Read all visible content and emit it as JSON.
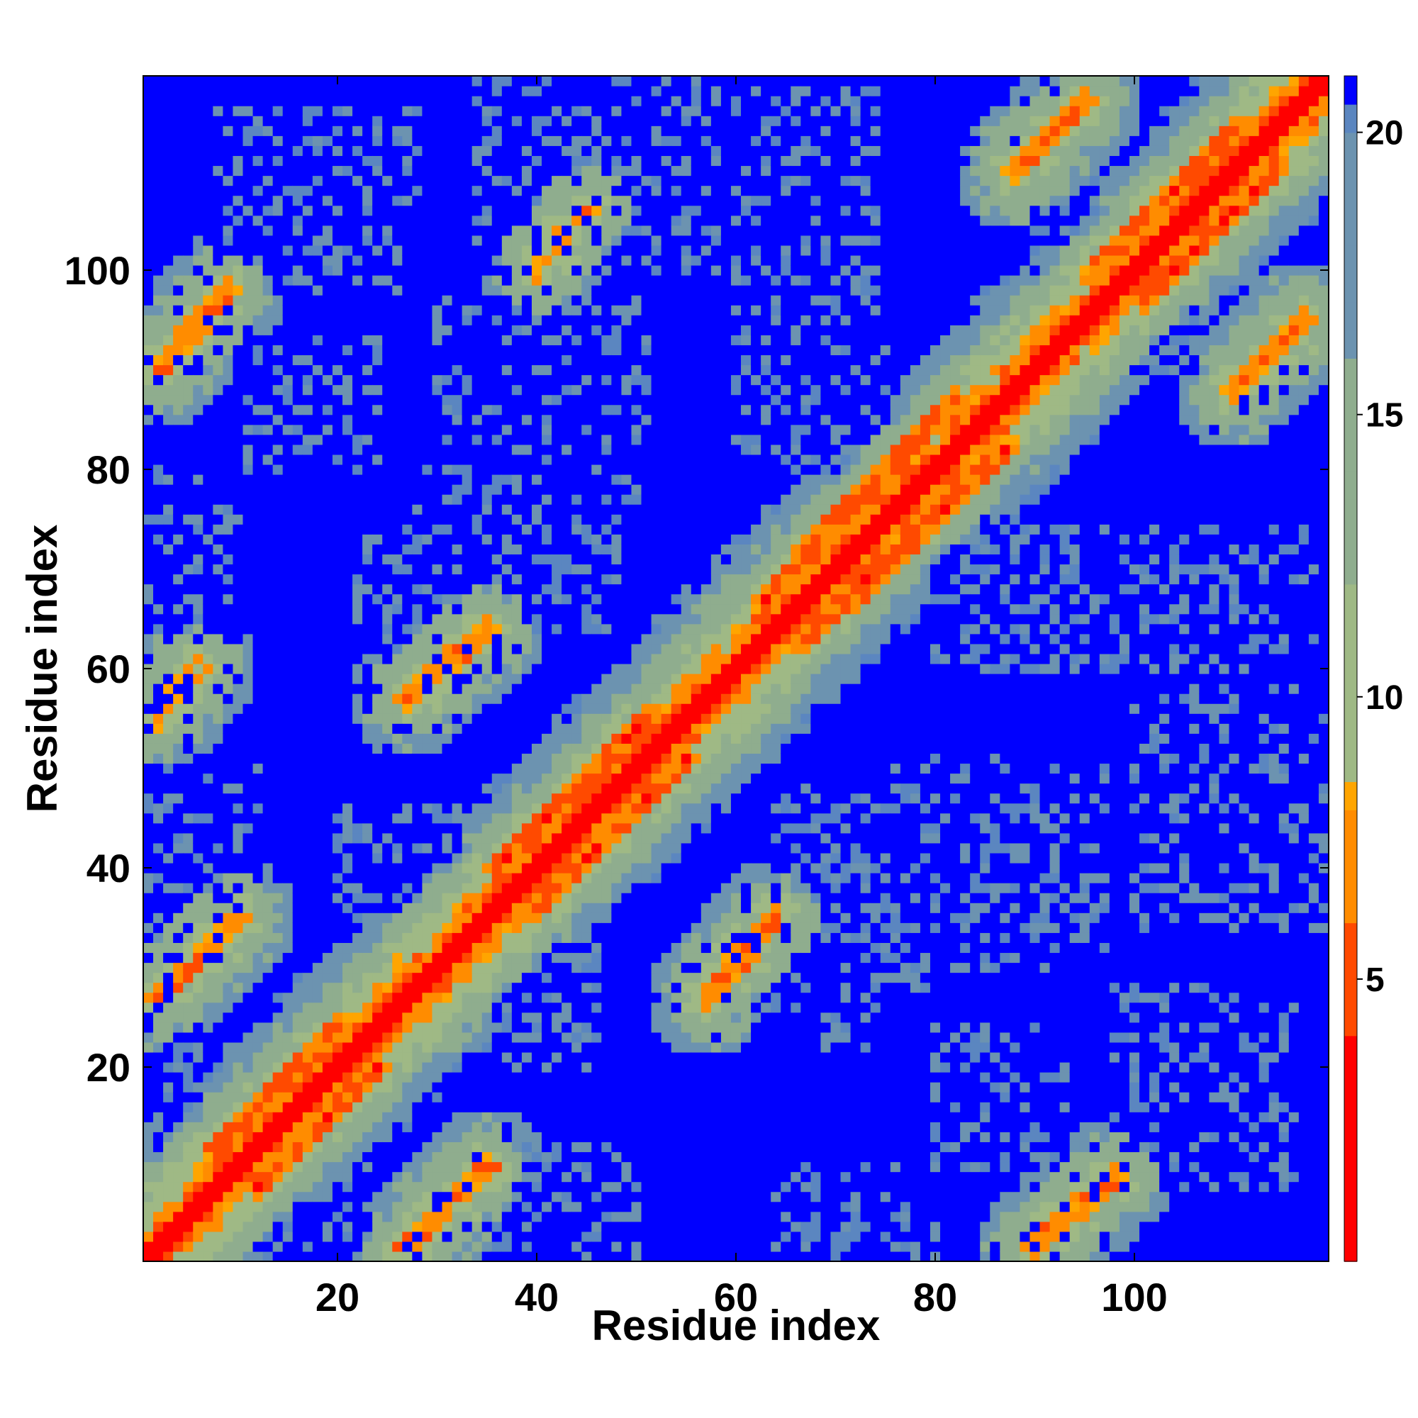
{
  "chart_data": {
    "type": "heatmap",
    "title": "",
    "xlabel": "Residue index",
    "ylabel": "Residue index",
    "xlim": [
      1,
      119
    ],
    "ylim": [
      1,
      119
    ],
    "x_ticks": [
      20,
      40,
      60,
      80,
      100
    ],
    "y_ticks": [
      20,
      40,
      60,
      80,
      100
    ],
    "colorbar": {
      "range": [
        0,
        21
      ],
      "ticks": [
        5,
        10,
        15,
        20
      ],
      "stops": [
        {
          "value": 0,
          "color": "#ff0000"
        },
        {
          "value": 4,
          "color": "#ff4a00"
        },
        {
          "value": 6,
          "color": "#ff8c00"
        },
        {
          "value": 8,
          "color": "#ffa500"
        },
        {
          "value": 8.5,
          "color": "#9fb985"
        },
        {
          "value": 12,
          "color": "#8fad8e"
        },
        {
          "value": 16,
          "color": "#6c93b0"
        },
        {
          "value": 20,
          "color": "#5b86c0"
        },
        {
          "value": 20.5,
          "color": "#0000ff"
        },
        {
          "value": 21,
          "color": "#0000ff"
        }
      ]
    },
    "description_of_values": "Pairwise residue distance map (Å); symmetric about diagonal",
    "features": {
      "diagonal_band": {
        "value": 0.5,
        "halfwidth": 1.2
      },
      "near_diagonal_contacts": [
        {
          "from": [
            12,
            8
          ],
          "to": [
            24,
            20
          ],
          "value": 5
        },
        {
          "from": [
            40,
            36
          ],
          "to": [
            55,
            51
          ],
          "value": 5
        },
        {
          "from": [
            67,
            63
          ],
          "to": [
            87,
            82
          ],
          "value": 5
        },
        {
          "from": [
            101,
            97
          ],
          "to": [
            114,
            110
          ],
          "value": 5
        }
      ],
      "off_diagonal_contacts": [
        {
          "from": [
            2,
            27
          ],
          "to": [
            10,
            35
          ],
          "value": 6
        },
        {
          "from": [
            2,
            90
          ],
          "to": [
            9,
            98
          ],
          "value": 6
        },
        {
          "from": [
            27,
            57
          ],
          "to": [
            35,
            64
          ],
          "value": 6
        },
        {
          "from": [
            57,
            27
          ],
          "to": [
            64,
            35
          ],
          "value": 6
        },
        {
          "from": [
            90,
            2
          ],
          "to": [
            98,
            9
          ],
          "value": 6
        },
        {
          "from": [
            27,
            2
          ],
          "to": [
            35,
            10
          ],
          "value": 6
        },
        {
          "from": [
            110,
            88
          ],
          "to": [
            117,
            95
          ],
          "value": 6
        },
        {
          "from": [
            88,
            110
          ],
          "to": [
            95,
            117
          ],
          "value": 6
        },
        {
          "from": [
            2,
            55
          ],
          "to": [
            6,
            60
          ],
          "value": 7
        },
        {
          "from": [
            40,
            100
          ],
          "to": [
            45,
            106
          ],
          "value": 7
        }
      ],
      "far_blocks": [
        {
          "x": [
            12,
            24
          ],
          "y": [
            98,
            116
          ]
        },
        {
          "x": [
            34,
            57
          ],
          "y": [
            100,
            119
          ]
        },
        {
          "x": [
            36,
            51
          ],
          "y": [
            75,
            93
          ]
        },
        {
          "x": [
            22,
            30
          ],
          "y": [
            62,
            74
          ]
        },
        {
          "x": [
            60,
            75
          ],
          "y": [
            80,
            92
          ]
        },
        {
          "x": [
            64,
            80
          ],
          "y": [
            28,
            48
          ]
        },
        {
          "x": [
            82,
            97
          ],
          "y": [
            30,
            50
          ]
        },
        {
          "x": [
            100,
            119
          ],
          "y": [
            36,
            58
          ]
        },
        {
          "x": [
            98,
            116
          ],
          "y": [
            8,
            28
          ]
        },
        {
          "x": [
            80,
            93
          ],
          "y": [
            10,
            24
          ]
        },
        {
          "x": [
            38,
            50
          ],
          "y": [
            1,
            12
          ]
        },
        {
          "x": [
            64,
            76
          ],
          "y": [
            1,
            10
          ]
        },
        {
          "x": [
            1,
            8
          ],
          "y": [
            36,
            50
          ]
        },
        {
          "x": [
            1,
            6
          ],
          "y": [
            64,
            80
          ]
        },
        {
          "x": [
            10,
            18
          ],
          "y": [
            82,
            92
          ]
        },
        {
          "x": [
            90,
            100
          ],
          "y": [
            96,
            106
          ]
        },
        {
          "x": [
            12,
            30
          ],
          "y": [
            2,
            6
          ]
        },
        {
          "x": [
            92,
            118
          ],
          "y": [
            60,
            74
          ]
        },
        {
          "x": [
            20,
            32
          ],
          "y": [
            36,
            46
          ]
        }
      ]
    }
  }
}
